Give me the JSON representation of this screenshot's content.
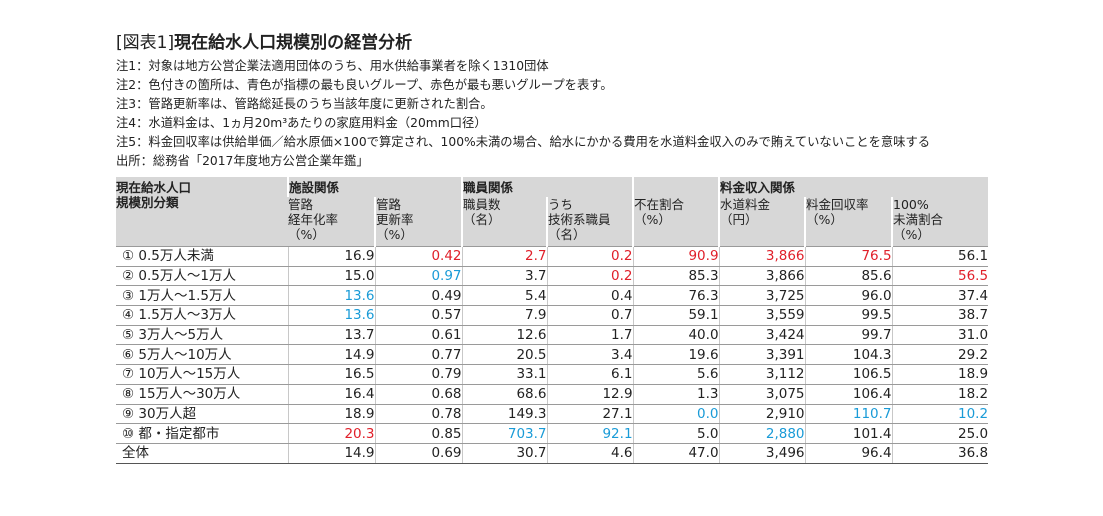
{
  "title": {
    "prefix": "[図表1]",
    "main": "現在給水人口規模別の経営分析"
  },
  "notes": [
    "注1：対象は地方公営企業法適用団体のうち、用水供給事業者を除く1310団体",
    "注2：色付きの箇所は、青色が指標の最も良いグループ、赤色が最も悪いグループを表す。",
    "注3：管路更新率は、管路総延長のうち当該年度に更新された割合。",
    "注4：水道料金は、1ヵ月20m³あたりの家庭用料金（20mm口径）",
    "注5：料金回収率は供給単価／給水原価×100で算定され、100%未満の場合、給水にかかる費用を水道料金収入のみで賄えていないことを意味する",
    "出所：総務省「2017年度地方公営企業年鑑」"
  ],
  "table": {
    "rowhead": [
      "現在給水人口",
      "規模別分類"
    ],
    "groups": {
      "facility": "施設関係",
      "staff": "職員関係",
      "fee": "料金収入関係"
    },
    "cols": [
      [
        "管路",
        "経年化率",
        "（%）"
      ],
      [
        "管路",
        "更新率",
        "（%）"
      ],
      [
        "職員数",
        "（名）"
      ],
      [
        "うち",
        "技術系職員",
        "（名）"
      ],
      [
        "不在割合",
        "（%）"
      ],
      [
        "水道料金",
        "（円）"
      ],
      [
        "料金回収率",
        "（%）"
      ],
      [
        "100%",
        "未満割合",
        "（%）"
      ]
    ],
    "rows": [
      {
        "label": "① 0.5万人未満",
        "cells": [
          [
            "16.9",
            ""
          ],
          [
            "0.42",
            "red"
          ],
          [
            "2.7",
            "red"
          ],
          [
            "0.2",
            "red"
          ],
          [
            "90.9",
            "red"
          ],
          [
            "3,866",
            "red"
          ],
          [
            "76.5",
            "red"
          ],
          [
            "56.1",
            ""
          ]
        ]
      },
      {
        "label": "② 0.5万人～1万人",
        "cells": [
          [
            "15.0",
            ""
          ],
          [
            "0.97",
            "blue"
          ],
          [
            "3.7",
            ""
          ],
          [
            "0.2",
            "red"
          ],
          [
            "85.3",
            ""
          ],
          [
            "3,866",
            ""
          ],
          [
            "85.6",
            ""
          ],
          [
            "56.5",
            "red"
          ]
        ]
      },
      {
        "label": "③ 1万人～1.5万人",
        "cells": [
          [
            "13.6",
            "blue"
          ],
          [
            "0.49",
            ""
          ],
          [
            "5.4",
            ""
          ],
          [
            "0.4",
            ""
          ],
          [
            "76.3",
            ""
          ],
          [
            "3,725",
            ""
          ],
          [
            "96.0",
            ""
          ],
          [
            "37.4",
            ""
          ]
        ]
      },
      {
        "label": "④ 1.5万人～3万人",
        "cells": [
          [
            "13.6",
            "blue"
          ],
          [
            "0.57",
            ""
          ],
          [
            "7.9",
            ""
          ],
          [
            "0.7",
            ""
          ],
          [
            "59.1",
            ""
          ],
          [
            "3,559",
            ""
          ],
          [
            "99.5",
            ""
          ],
          [
            "38.7",
            ""
          ]
        ]
      },
      {
        "label": "⑤ 3万人～5万人",
        "cells": [
          [
            "13.7",
            ""
          ],
          [
            "0.61",
            ""
          ],
          [
            "12.6",
            ""
          ],
          [
            "1.7",
            ""
          ],
          [
            "40.0",
            ""
          ],
          [
            "3,424",
            ""
          ],
          [
            "99.7",
            ""
          ],
          [
            "31.0",
            ""
          ]
        ]
      },
      {
        "label": "⑥ 5万人～10万人",
        "cells": [
          [
            "14.9",
            ""
          ],
          [
            "0.77",
            ""
          ],
          [
            "20.5",
            ""
          ],
          [
            "3.4",
            ""
          ],
          [
            "19.6",
            ""
          ],
          [
            "3,391",
            ""
          ],
          [
            "104.3",
            ""
          ],
          [
            "29.2",
            ""
          ]
        ]
      },
      {
        "label": "⑦ 10万人～15万人",
        "cells": [
          [
            "16.5",
            ""
          ],
          [
            "0.79",
            ""
          ],
          [
            "33.1",
            ""
          ],
          [
            "6.1",
            ""
          ],
          [
            "5.6",
            ""
          ],
          [
            "3,112",
            ""
          ],
          [
            "106.5",
            ""
          ],
          [
            "18.9",
            ""
          ]
        ]
      },
      {
        "label": "⑧ 15万人～30万人",
        "cells": [
          [
            "16.4",
            ""
          ],
          [
            "0.68",
            ""
          ],
          [
            "68.6",
            ""
          ],
          [
            "12.9",
            ""
          ],
          [
            "1.3",
            ""
          ],
          [
            "3,075",
            ""
          ],
          [
            "106.4",
            ""
          ],
          [
            "18.2",
            ""
          ]
        ]
      },
      {
        "label": "⑨ 30万人超",
        "cells": [
          [
            "18.9",
            ""
          ],
          [
            "0.78",
            ""
          ],
          [
            "149.3",
            ""
          ],
          [
            "27.1",
            ""
          ],
          [
            "0.0",
            "blue"
          ],
          [
            "2,910",
            ""
          ],
          [
            "110.7",
            "blue"
          ],
          [
            "10.2",
            "blue"
          ]
        ]
      },
      {
        "label": "⑩ 都・指定都市",
        "cells": [
          [
            "20.3",
            "red"
          ],
          [
            "0.85",
            ""
          ],
          [
            "703.7",
            "blue"
          ],
          [
            "92.1",
            "blue"
          ],
          [
            "5.0",
            ""
          ],
          [
            "2,880",
            "blue"
          ],
          [
            "101.4",
            ""
          ],
          [
            "25.0",
            ""
          ]
        ]
      },
      {
        "label": "全体",
        "cells": [
          [
            "14.9",
            ""
          ],
          [
            "0.69",
            ""
          ],
          [
            "30.7",
            ""
          ],
          [
            "4.6",
            ""
          ],
          [
            "47.0",
            ""
          ],
          [
            "3,496",
            ""
          ],
          [
            "96.4",
            ""
          ],
          [
            "36.8",
            ""
          ]
        ]
      }
    ]
  },
  "colors": {
    "best": "#1a9bd7",
    "worst": "#e0202a",
    "header_bg": "#d7d7d7"
  }
}
